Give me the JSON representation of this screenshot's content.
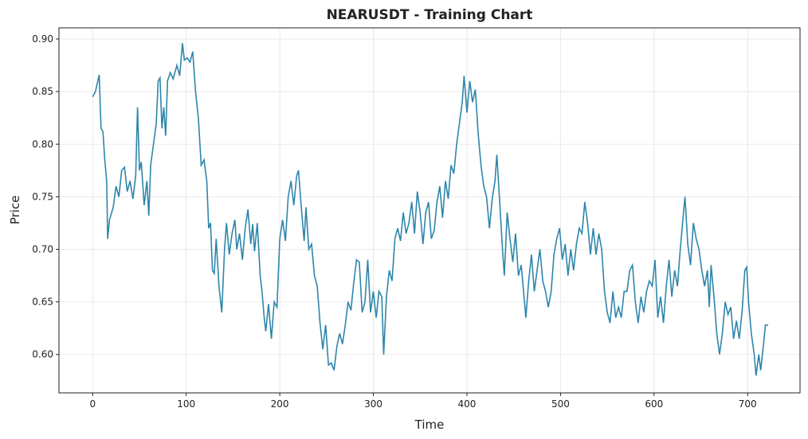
{
  "chart_data": {
    "type": "line",
    "title": "NEARUSDT - Training Chart",
    "x_label": "Time",
    "y_label": "Price",
    "xlim": [
      -36,
      756
    ],
    "ylim": [
      0.5635,
      0.9106
    ],
    "xticks": [
      0,
      100,
      200,
      300,
      400,
      500,
      600,
      700
    ],
    "yticks": [
      {
        "value": 0.6,
        "label": "0.60"
      },
      {
        "value": 0.65,
        "label": "0.65"
      },
      {
        "value": 0.7,
        "label": "0.70"
      },
      {
        "value": 0.75,
        "label": "0.75"
      },
      {
        "value": 0.8,
        "label": "0.80"
      },
      {
        "value": 0.85,
        "label": "0.85"
      },
      {
        "value": 0.9,
        "label": "0.90"
      }
    ],
    "grid": true,
    "x": [
      0,
      3,
      5,
      7,
      9,
      11,
      13,
      15,
      16,
      18,
      22,
      25,
      28,
      31,
      34,
      37,
      40,
      43,
      46,
      48,
      50,
      52,
      55,
      58,
      60,
      62,
      65,
      68,
      70,
      72,
      74,
      76,
      78,
      80,
      83,
      86,
      90,
      93,
      96,
      98,
      101,
      104,
      107,
      110,
      113,
      116,
      119,
      122,
      124,
      126,
      128,
      130,
      132,
      135,
      138,
      141,
      143,
      146,
      149,
      152,
      154,
      157,
      160,
      163,
      166,
      169,
      171,
      173,
      176,
      179,
      181,
      183,
      185,
      188,
      191,
      194,
      197,
      200,
      203,
      206,
      209,
      212,
      215,
      218,
      220,
      223,
      226,
      228,
      231,
      234,
      237,
      240,
      243,
      246,
      249,
      252,
      255,
      258,
      261,
      264,
      267,
      270,
      273,
      276,
      279,
      282,
      285,
      288,
      291,
      294,
      297,
      300,
      303,
      306,
      309,
      311,
      314,
      317,
      320,
      323,
      326,
      329,
      332,
      335,
      338,
      341,
      344,
      347,
      350,
      353,
      356,
      359,
      362,
      365,
      368,
      371,
      374,
      377,
      380,
      383,
      386,
      389,
      392,
      395,
      397,
      400,
      403,
      406,
      409,
      412,
      415,
      418,
      421,
      424,
      427,
      430,
      432,
      435,
      438,
      440,
      443,
      446,
      449,
      452,
      455,
      458,
      461,
      463,
      466,
      469,
      472,
      475,
      478,
      481,
      484,
      487,
      490,
      493,
      496,
      499,
      502,
      505,
      508,
      511,
      514,
      517,
      520,
      523,
      526,
      529,
      532,
      535,
      538,
      541,
      544,
      547,
      550,
      553,
      556,
      559,
      562,
      565,
      568,
      571,
      574,
      577,
      580,
      583,
      586,
      589,
      592,
      595,
      598,
      601,
      604,
      607,
      610,
      613,
      616,
      619,
      622,
      625,
      628,
      631,
      633,
      636,
      639,
      642,
      645,
      648,
      651,
      654,
      657,
      659,
      661,
      664,
      667,
      670,
      673,
      676,
      679,
      682,
      685,
      688,
      691,
      694,
      697,
      699,
      701,
      704,
      707,
      709,
      712,
      714,
      717,
      719,
      722
    ],
    "series": [
      {
        "name": "Price",
        "color": "#2e86ab",
        "values": [
          0.845,
          0.85,
          0.858,
          0.866,
          0.815,
          0.812,
          0.785,
          0.765,
          0.71,
          0.728,
          0.74,
          0.76,
          0.75,
          0.775,
          0.778,
          0.755,
          0.765,
          0.748,
          0.77,
          0.835,
          0.775,
          0.783,
          0.742,
          0.765,
          0.732,
          0.78,
          0.8,
          0.82,
          0.86,
          0.863,
          0.815,
          0.835,
          0.808,
          0.86,
          0.868,
          0.862,
          0.875,
          0.865,
          0.896,
          0.88,
          0.882,
          0.878,
          0.888,
          0.85,
          0.824,
          0.78,
          0.785,
          0.765,
          0.72,
          0.725,
          0.68,
          0.677,
          0.71,
          0.665,
          0.64,
          0.7,
          0.725,
          0.695,
          0.715,
          0.728,
          0.7,
          0.715,
          0.69,
          0.72,
          0.738,
          0.705,
          0.724,
          0.698,
          0.725,
          0.675,
          0.66,
          0.638,
          0.622,
          0.648,
          0.615,
          0.65,
          0.645,
          0.71,
          0.728,
          0.708,
          0.75,
          0.765,
          0.742,
          0.77,
          0.775,
          0.74,
          0.708,
          0.74,
          0.7,
          0.705,
          0.675,
          0.665,
          0.63,
          0.605,
          0.628,
          0.59,
          0.592,
          0.585,
          0.608,
          0.62,
          0.61,
          0.628,
          0.65,
          0.642,
          0.668,
          0.69,
          0.688,
          0.64,
          0.65,
          0.69,
          0.64,
          0.66,
          0.635,
          0.66,
          0.655,
          0.6,
          0.655,
          0.68,
          0.67,
          0.71,
          0.72,
          0.708,
          0.735,
          0.715,
          0.725,
          0.745,
          0.715,
          0.755,
          0.735,
          0.705,
          0.735,
          0.745,
          0.71,
          0.718,
          0.745,
          0.76,
          0.73,
          0.765,
          0.748,
          0.78,
          0.772,
          0.8,
          0.82,
          0.84,
          0.865,
          0.83,
          0.86,
          0.84,
          0.852,
          0.81,
          0.78,
          0.76,
          0.75,
          0.72,
          0.748,
          0.765,
          0.79,
          0.745,
          0.7,
          0.675,
          0.735,
          0.71,
          0.688,
          0.715,
          0.675,
          0.685,
          0.655,
          0.635,
          0.67,
          0.695,
          0.66,
          0.68,
          0.7,
          0.67,
          0.66,
          0.645,
          0.66,
          0.695,
          0.71,
          0.72,
          0.69,
          0.705,
          0.675,
          0.7,
          0.68,
          0.705,
          0.72,
          0.715,
          0.745,
          0.725,
          0.695,
          0.72,
          0.695,
          0.715,
          0.7,
          0.66,
          0.64,
          0.63,
          0.66,
          0.635,
          0.645,
          0.635,
          0.66,
          0.66,
          0.68,
          0.685,
          0.65,
          0.63,
          0.655,
          0.64,
          0.66,
          0.67,
          0.665,
          0.69,
          0.635,
          0.655,
          0.63,
          0.665,
          0.69,
          0.655,
          0.68,
          0.665,
          0.7,
          0.73,
          0.75,
          0.705,
          0.685,
          0.725,
          0.71,
          0.7,
          0.68,
          0.665,
          0.68,
          0.645,
          0.685,
          0.655,
          0.62,
          0.6,
          0.62,
          0.65,
          0.638,
          0.645,
          0.615,
          0.632,
          0.615,
          0.64,
          0.68,
          0.683,
          0.65,
          0.62,
          0.6,
          0.58,
          0.6,
          0.585,
          0.61,
          0.628,
          0.628
        ]
      }
    ]
  }
}
